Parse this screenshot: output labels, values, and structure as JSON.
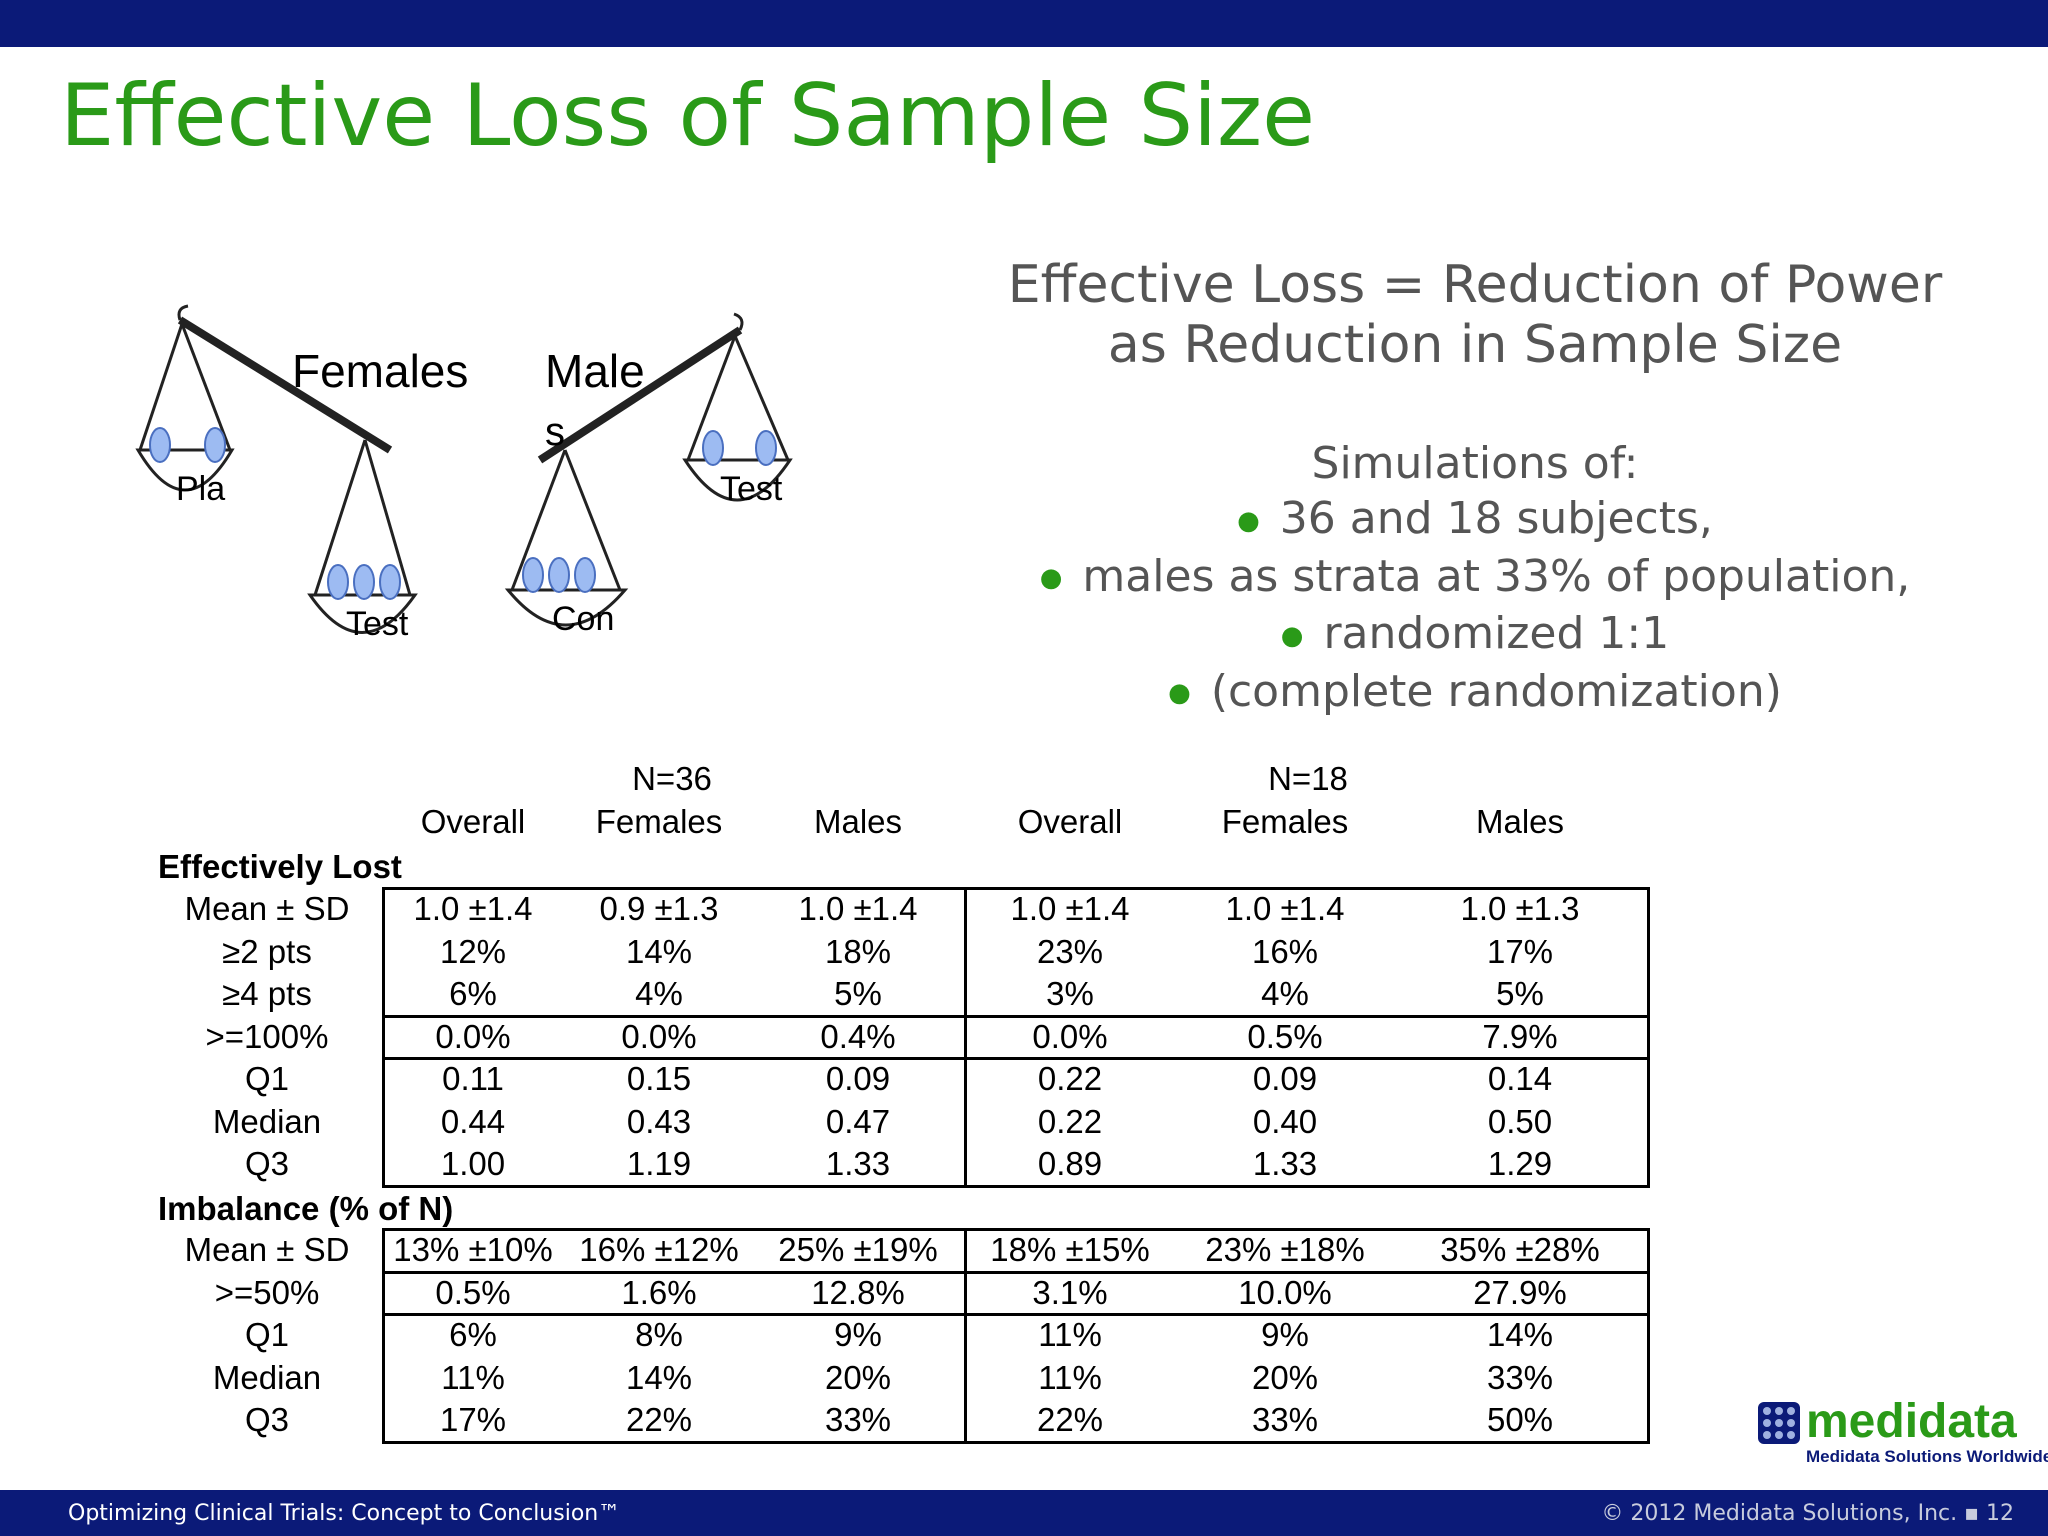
{
  "slide": {
    "title": "Effective Loss of Sample Size",
    "definition_line1": "Effective Loss =  Reduction of Power",
    "definition_line2": "as Reduction in Sample Size",
    "simulations_heading": "Simulations of:",
    "bullets": [
      "36 and 18 subjects,",
      "males as strata at 33% of population,",
      "randomized 1:1",
      "(complete randomization)"
    ]
  },
  "illustration": {
    "label_females": "Females",
    "label_males": "Male",
    "label_males_cont": "s",
    "pan_pla": "Pla",
    "pan_test_left": "Test",
    "pan_con": "Con",
    "pan_test_right": "Test"
  },
  "table": {
    "group_n36": "N=36",
    "group_n18": "N=18",
    "columns": [
      "Overall",
      "Females",
      "Males",
      "Overall",
      "Females",
      "Males"
    ],
    "section_lost": "Effectively Lost",
    "section_imbalance": "Imbalance (% of N)",
    "lost_rows": [
      {
        "label": "Mean ± SD",
        "values": [
          "1.0 ±1.4",
          "0.9 ±1.3",
          "1.0 ±1.4",
          "1.0 ±1.4",
          "1.0 ±1.4",
          "1.0 ±1.3"
        ]
      },
      {
        "label": "≥2 pts",
        "values": [
          "12%",
          "14%",
          "18%",
          "23%",
          "16%",
          "17%"
        ]
      },
      {
        "label": "≥4 pts",
        "values": [
          "6%",
          "4%",
          "5%",
          "3%",
          "4%",
          "5%"
        ]
      },
      {
        "label": ">=100%",
        "values": [
          "0.0%",
          "0.0%",
          "0.4%",
          "0.0%",
          "0.5%",
          "7.9%"
        ]
      },
      {
        "label": "Q1",
        "values": [
          "0.11",
          "0.15",
          "0.09",
          "0.22",
          "0.09",
          "0.14"
        ]
      },
      {
        "label": "Median",
        "values": [
          "0.44",
          "0.43",
          "0.47",
          "0.22",
          "0.40",
          "0.50"
        ]
      },
      {
        "label": "Q3",
        "values": [
          "1.00",
          "1.19",
          "1.33",
          "0.89",
          "1.33",
          "1.29"
        ]
      }
    ],
    "imbalance_rows": [
      {
        "label": "Mean ± SD",
        "values": [
          "13% ±10%",
          "16% ±12%",
          "25% ±19%",
          "18% ±15%",
          "23% ±18%",
          "35% ±28%"
        ]
      },
      {
        "label": ">=50%",
        "values": [
          "0.5%",
          "1.6%",
          "12.8%",
          "3.1%",
          "10.0%",
          "27.9%"
        ]
      },
      {
        "label": "Q1",
        "values": [
          "6%",
          "8%",
          "9%",
          "11%",
          "9%",
          "14%"
        ]
      },
      {
        "label": "Median",
        "values": [
          "11%",
          "14%",
          "20%",
          "11%",
          "20%",
          "33%"
        ]
      },
      {
        "label": "Q3",
        "values": [
          "17%",
          "22%",
          "33%",
          "22%",
          "33%",
          "50%"
        ]
      }
    ]
  },
  "footer": {
    "left": "Optimizing Clinical Trials: Concept to Conclusion™",
    "right": "© 2012 Medidata Solutions, Inc. ▪ 12"
  },
  "logo": {
    "name": "medidata",
    "tagline": "Medidata Solutions Worldwide"
  },
  "colors": {
    "header_bar": "#0b1a78",
    "title_green": "#2a9a18",
    "body_gray": "#555555"
  }
}
